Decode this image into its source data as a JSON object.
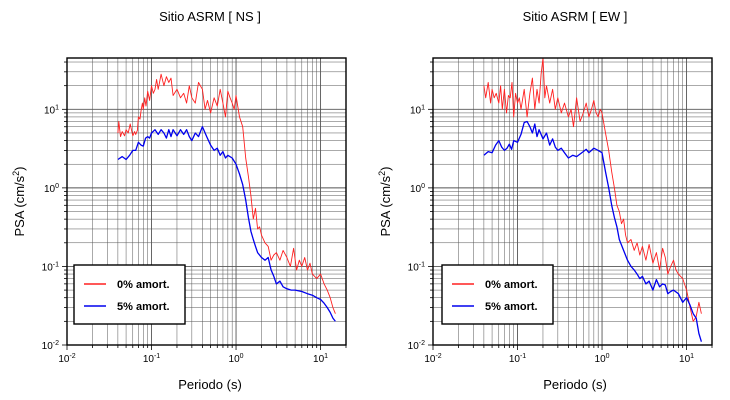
{
  "colors": {
    "undamped": "#ff2020",
    "damped": "#0000ee",
    "grid": "#555555",
    "frame": "#000000"
  },
  "chart_data": [
    {
      "type": "line",
      "title": "Sitio ASRM [ NS ]",
      "xlabel": "Periodo (s)",
      "ylabel": "PSA (cm/s",
      "ylabel_sup": "2",
      "ylabel_end": ")",
      "xscale": "log",
      "yscale": "log",
      "xlim": [
        0.01,
        20
      ],
      "ylim": [
        0.01,
        45
      ],
      "grid": true,
      "xticks": [
        {
          "base": "10",
          "exp": "-2"
        },
        {
          "base": "10",
          "exp": "-1"
        },
        {
          "base": "10",
          "exp": "0"
        },
        {
          "base": "10",
          "exp": "1"
        }
      ],
      "yticks": [
        {
          "base": "10",
          "exp": "-2"
        },
        {
          "base": "10",
          "exp": "-1"
        },
        {
          "base": "10",
          "exp": "0"
        },
        {
          "base": "10",
          "exp": "1"
        }
      ],
      "legend": {
        "placement": "bottom-left"
      },
      "series": [
        {
          "name": "0% amort.",
          "color": "#ff2020",
          "x": [
            0.04,
            0.041,
            0.043,
            0.045,
            0.048,
            0.05,
            0.053,
            0.056,
            0.06,
            0.063,
            0.065,
            0.068,
            0.07,
            0.073,
            0.075,
            0.078,
            0.08,
            0.083,
            0.086,
            0.09,
            0.095,
            0.1,
            0.105,
            0.11,
            0.115,
            0.12,
            0.13,
            0.14,
            0.15,
            0.16,
            0.17,
            0.18,
            0.2,
            0.22,
            0.24,
            0.26,
            0.28,
            0.3,
            0.33,
            0.36,
            0.4,
            0.43,
            0.46,
            0.5,
            0.55,
            0.6,
            0.65,
            0.7,
            0.75,
            0.8,
            0.85,
            0.9,
            0.95,
            1.0,
            1.1,
            1.2,
            1.3,
            1.4,
            1.5,
            1.6,
            1.7,
            1.8,
            1.9,
            2.0,
            2.2,
            2.4,
            2.6,
            2.8,
            3.0,
            3.3,
            3.6,
            4.0,
            4.4,
            4.8,
            5.2,
            5.6,
            6.0,
            6.5,
            7.0,
            7.5,
            8.0,
            9.0,
            10,
            11,
            12,
            13,
            14,
            15
          ],
          "y": [
            5,
            7,
            4.5,
            5.2,
            4.6,
            5.5,
            5,
            6.5,
            4.6,
            5.2,
            4.8,
            5.4,
            8,
            7.5,
            9.5,
            12,
            10,
            14,
            11,
            17,
            13,
            20,
            16,
            18,
            24,
            18,
            28,
            20,
            26,
            22,
            25,
            15,
            18,
            14,
            16,
            12,
            20,
            14,
            12,
            22,
            18,
            10,
            13,
            9,
            14,
            11,
            18,
            12,
            8,
            17,
            14,
            12,
            10,
            15,
            8,
            6,
            2.4,
            1.4,
            0.8,
            0.4,
            0.55,
            0.3,
            0.32,
            0.25,
            0.2,
            0.18,
            0.12,
            0.14,
            0.15,
            0.12,
            0.16,
            0.13,
            0.1,
            0.17,
            0.09,
            0.12,
            0.1,
            0.13,
            0.09,
            0.11,
            0.08,
            0.07,
            0.08,
            0.06,
            0.05,
            0.04,
            0.03,
            0.025
          ]
        },
        {
          "name": "5% amort.",
          "color": "#0000ee",
          "x": [
            0.04,
            0.045,
            0.05,
            0.055,
            0.06,
            0.065,
            0.07,
            0.075,
            0.08,
            0.085,
            0.09,
            0.095,
            0.1,
            0.11,
            0.12,
            0.13,
            0.14,
            0.15,
            0.16,
            0.17,
            0.18,
            0.2,
            0.22,
            0.24,
            0.26,
            0.28,
            0.3,
            0.33,
            0.36,
            0.4,
            0.45,
            0.5,
            0.55,
            0.6,
            0.65,
            0.7,
            0.75,
            0.8,
            0.9,
            1.0,
            1.1,
            1.2,
            1.3,
            1.4,
            1.5,
            1.6,
            1.7,
            1.8,
            2.0,
            2.2,
            2.4,
            2.6,
            2.8,
            3.0,
            3.3,
            3.6,
            4.0,
            4.5,
            5.0,
            6.0,
            7.0,
            8.0,
            9.0,
            10,
            11,
            12,
            13,
            14,
            15
          ],
          "y": [
            2.3,
            2.5,
            2.3,
            2.6,
            3,
            3,
            3.8,
            3.5,
            3.4,
            4.3,
            4.5,
            4.3,
            5,
            5.5,
            4.8,
            5.5,
            5,
            4.3,
            5.5,
            4.5,
            5.5,
            4.6,
            5.5,
            4.8,
            5.5,
            4.5,
            4,
            5,
            4.5,
            6,
            4.5,
            3.5,
            3,
            3.2,
            2.6,
            2.9,
            2.4,
            2.6,
            2.4,
            2,
            1.5,
            1.1,
            0.7,
            0.42,
            0.28,
            0.22,
            0.18,
            0.15,
            0.13,
            0.12,
            0.13,
            0.09,
            0.075,
            0.06,
            0.065,
            0.055,
            0.052,
            0.05,
            0.05,
            0.048,
            0.045,
            0.043,
            0.04,
            0.038,
            0.034,
            0.03,
            0.026,
            0.022,
            0.02
          ]
        }
      ]
    },
    {
      "type": "line",
      "title": "Sitio ASRM [ EW ]",
      "xlabel": "Periodo (s)",
      "ylabel": "PSA (cm/s",
      "ylabel_sup": "2",
      "ylabel_end": ")",
      "xscale": "log",
      "yscale": "log",
      "xlim": [
        0.01,
        20
      ],
      "ylim": [
        0.01,
        45
      ],
      "grid": true,
      "xticks": [
        {
          "base": "10",
          "exp": "-2"
        },
        {
          "base": "10",
          "exp": "-1"
        },
        {
          "base": "10",
          "exp": "0"
        },
        {
          "base": "10",
          "exp": "1"
        }
      ],
      "yticks": [
        {
          "base": "10",
          "exp": "-2"
        },
        {
          "base": "10",
          "exp": "-1"
        },
        {
          "base": "10",
          "exp": "0"
        },
        {
          "base": "10",
          "exp": "1"
        }
      ],
      "legend": {
        "placement": "bottom-left"
      },
      "series": [
        {
          "name": "0% amort.",
          "color": "#ff2020",
          "x": [
            0.04,
            0.042,
            0.045,
            0.048,
            0.05,
            0.053,
            0.056,
            0.06,
            0.063,
            0.066,
            0.07,
            0.074,
            0.078,
            0.082,
            0.086,
            0.09,
            0.095,
            0.1,
            0.105,
            0.11,
            0.12,
            0.13,
            0.14,
            0.15,
            0.16,
            0.17,
            0.18,
            0.19,
            0.2,
            0.21,
            0.22,
            0.24,
            0.26,
            0.28,
            0.3,
            0.33,
            0.36,
            0.4,
            0.43,
            0.46,
            0.5,
            0.55,
            0.6,
            0.65,
            0.7,
            0.75,
            0.8,
            0.85,
            0.9,
            0.95,
            1.0,
            1.1,
            1.2,
            1.3,
            1.4,
            1.5,
            1.6,
            1.7,
            1.8,
            1.9,
            2.0,
            2.2,
            2.4,
            2.6,
            2.8,
            3.0,
            3.3,
            3.6,
            4.0,
            4.4,
            4.8,
            5.2,
            5.6,
            6.0,
            6.5,
            7.0,
            7.5,
            8.0,
            9.0,
            10,
            11,
            12,
            13,
            14,
            15
          ],
          "y": [
            20,
            14,
            22,
            12,
            18,
            14,
            16,
            12,
            20,
            10,
            18,
            9,
            15,
            14,
            22,
            8,
            16,
            12,
            14,
            10,
            18,
            8,
            16,
            25,
            10,
            18,
            12,
            28,
            45,
            14,
            20,
            12,
            18,
            10,
            14,
            9,
            12,
            8,
            10,
            6,
            14,
            7,
            9,
            12,
            8,
            10,
            13,
            9,
            8,
            10,
            9,
            5,
            3,
            1.6,
            1.0,
            0.6,
            0.5,
            0.35,
            0.4,
            0.25,
            0.2,
            0.22,
            0.16,
            0.2,
            0.14,
            0.18,
            0.12,
            0.19,
            0.11,
            0.15,
            0.09,
            0.17,
            0.13,
            0.08,
            0.1,
            0.12,
            0.09,
            0.08,
            0.07,
            0.05,
            0.03,
            0.02,
            0.023,
            0.035,
            0.025
          ]
        },
        {
          "name": "5% amort.",
          "color": "#0000ee",
          "x": [
            0.04,
            0.045,
            0.05,
            0.055,
            0.06,
            0.065,
            0.07,
            0.075,
            0.08,
            0.085,
            0.09,
            0.1,
            0.11,
            0.12,
            0.13,
            0.14,
            0.15,
            0.16,
            0.17,
            0.18,
            0.2,
            0.22,
            0.24,
            0.26,
            0.28,
            0.3,
            0.33,
            0.36,
            0.4,
            0.45,
            0.5,
            0.55,
            0.6,
            0.65,
            0.7,
            0.75,
            0.8,
            0.9,
            1.0,
            1.1,
            1.2,
            1.3,
            1.4,
            1.5,
            1.6,
            1.8,
            2.0,
            2.2,
            2.4,
            2.6,
            2.8,
            3.0,
            3.3,
            3.6,
            4.0,
            4.4,
            4.8,
            5.2,
            5.6,
            6.0,
            6.5,
            7.0,
            8.0,
            9.0,
            10,
            11,
            12,
            13,
            14,
            15
          ],
          "y": [
            2.6,
            2.9,
            2.8,
            3.5,
            4,
            3.3,
            3,
            3.2,
            3.6,
            3.1,
            4,
            3.8,
            4.8,
            6.8,
            7,
            6,
            5,
            6.5,
            4.5,
            5.5,
            4.2,
            5,
            3.5,
            4.2,
            3.3,
            3,
            3.2,
            2.8,
            2.4,
            2.6,
            2.5,
            2.7,
            2.9,
            3.1,
            2.8,
            3,
            3.2,
            3,
            2.8,
            1.6,
            1.0,
            0.6,
            0.42,
            0.32,
            0.22,
            0.16,
            0.12,
            0.1,
            0.09,
            0.08,
            0.07,
            0.075,
            0.06,
            0.065,
            0.05,
            0.068,
            0.055,
            0.06,
            0.058,
            0.045,
            0.048,
            0.05,
            0.045,
            0.035,
            0.04,
            0.032,
            0.025,
            0.022,
            0.014,
            0.011
          ]
        }
      ]
    }
  ]
}
